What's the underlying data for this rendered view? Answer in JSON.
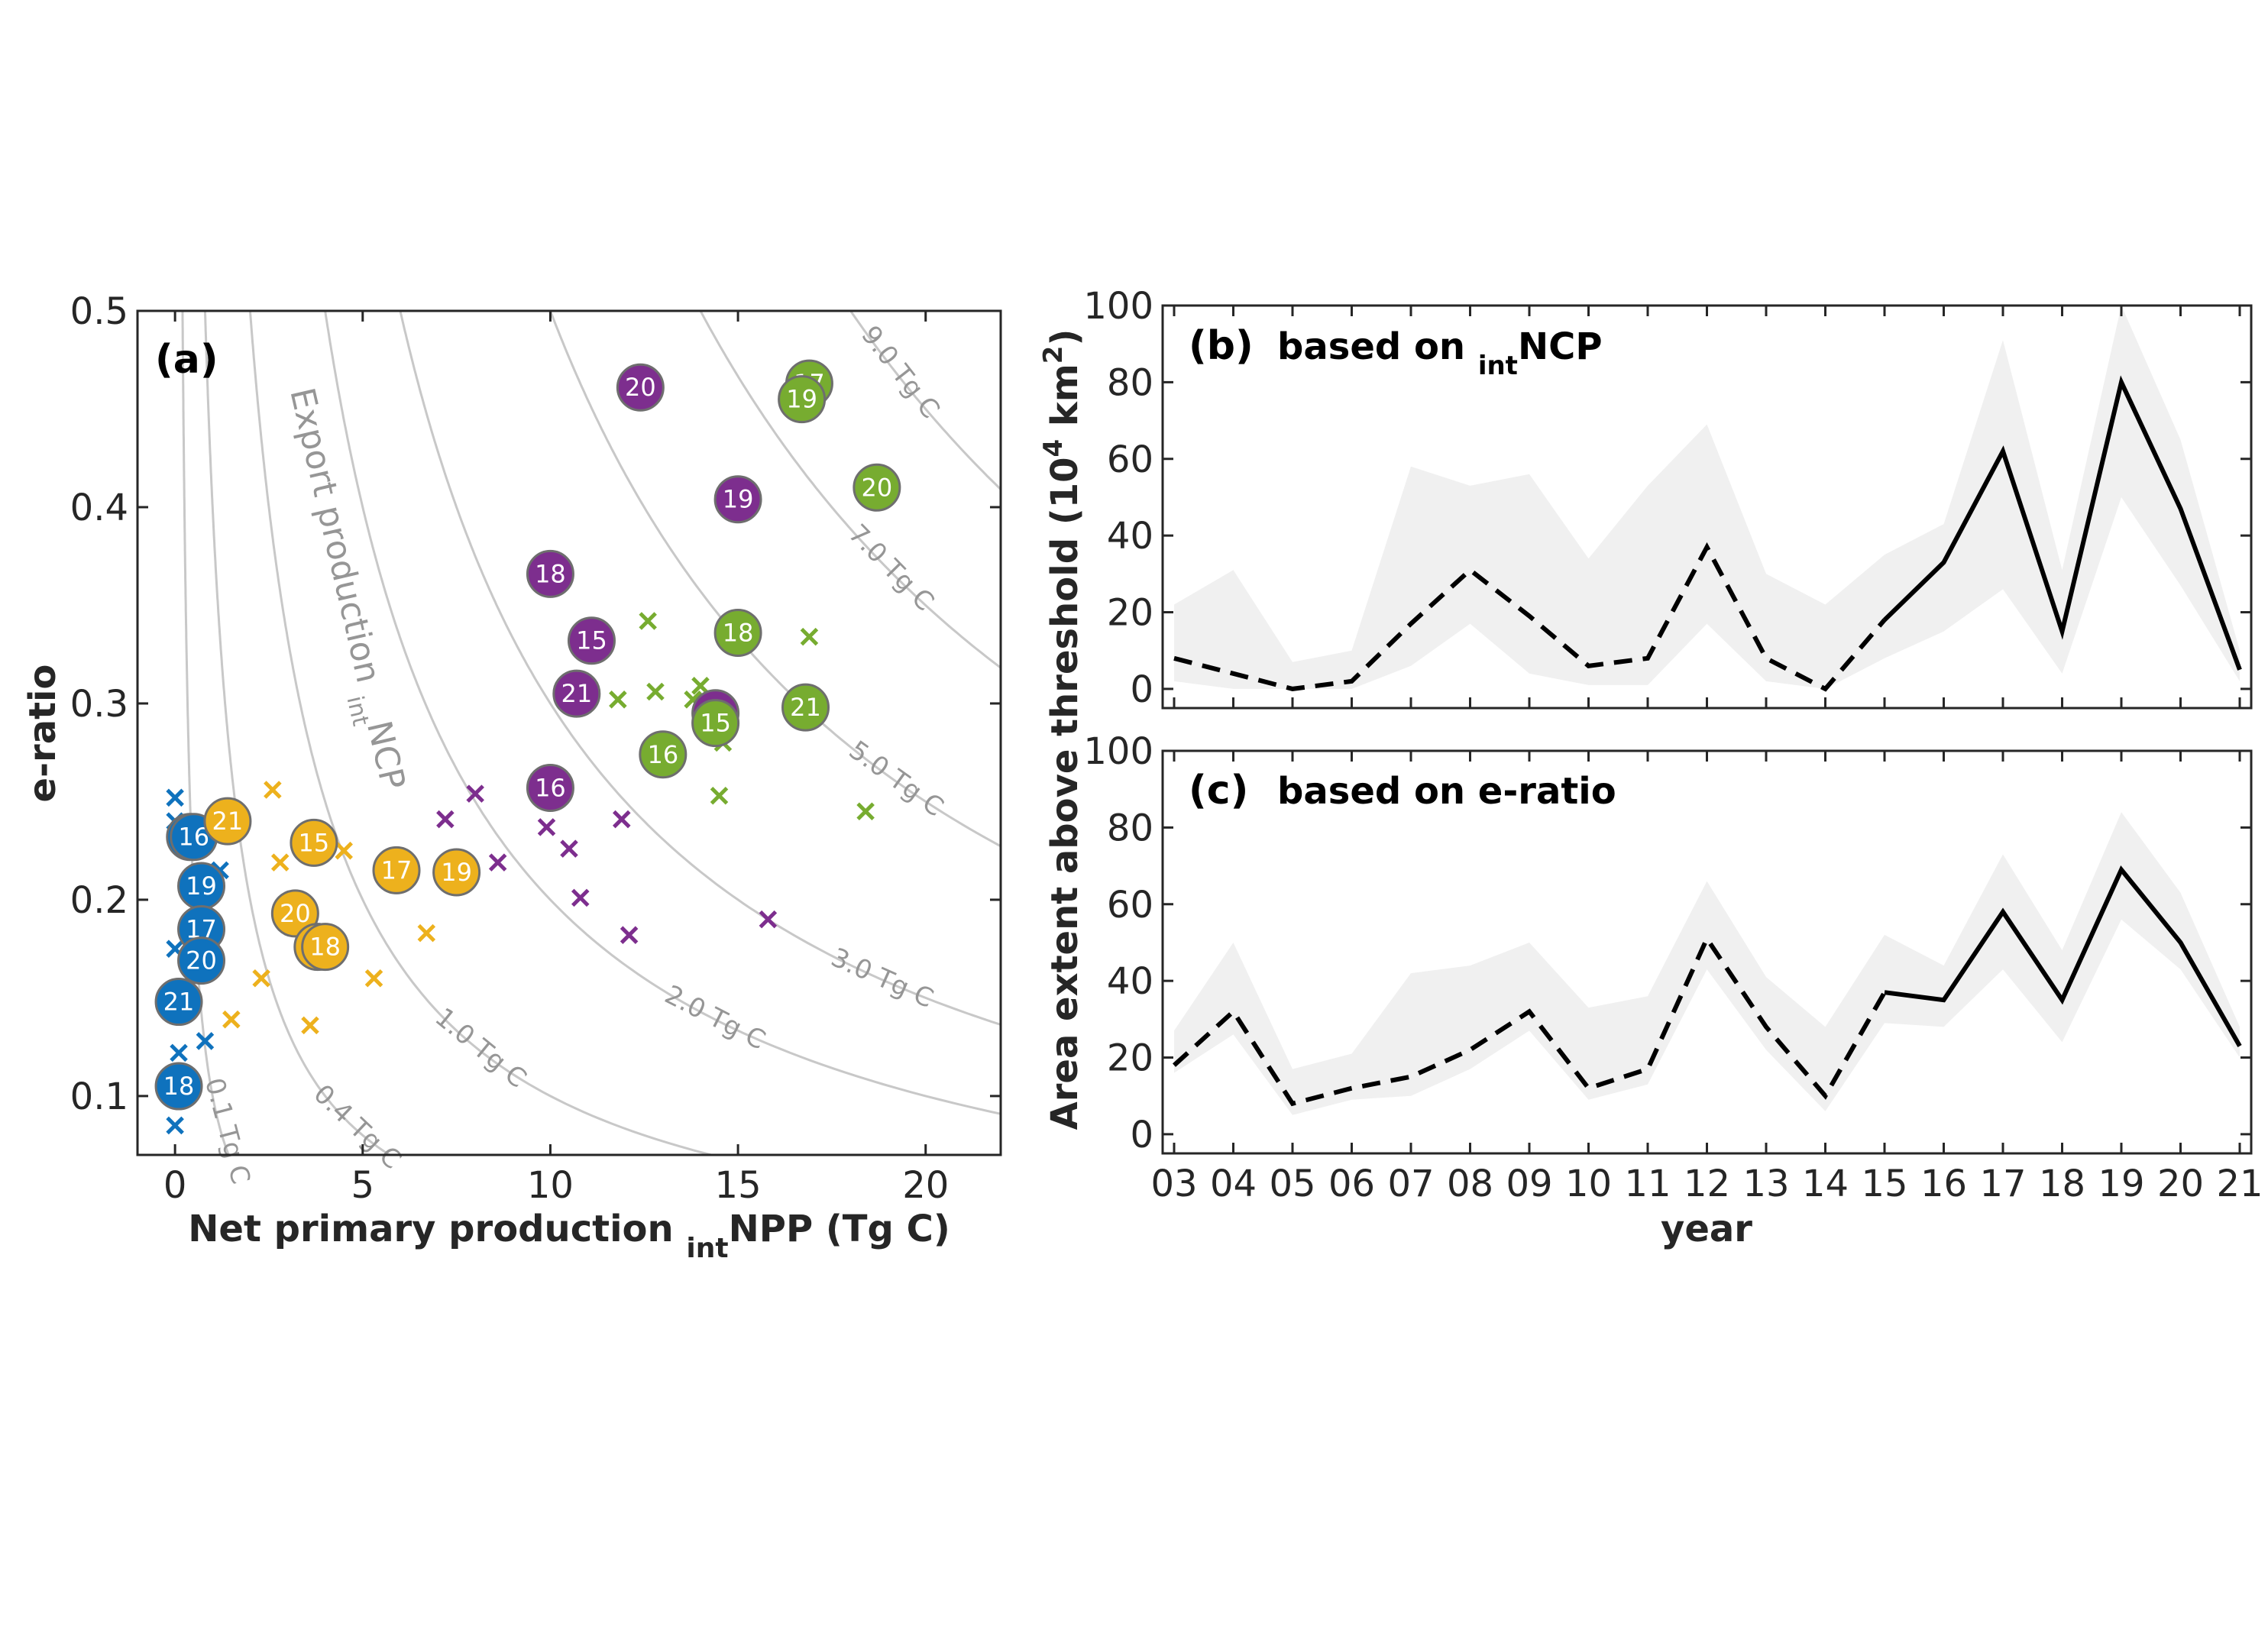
{
  "colors": {
    "blue": "#0f72bd",
    "yellow": "#edb11d",
    "purple": "#7d2e8e",
    "green": "#77ac30",
    "contour": "#c8c8c8",
    "contour_label": "#969696",
    "band": "#f0f0f0"
  },
  "chart_data": [
    {
      "type": "scatter",
      "panel": "(a)",
      "xlabel_pre": "Net primary production ",
      "xlabel_sub": "int",
      "xlabel_post": "NPP (Tg C)",
      "ylabel": "e-ratio",
      "xlim": [
        -1,
        22
      ],
      "ylim": [
        0.07,
        0.5
      ],
      "xticks": [
        0,
        5,
        10,
        15,
        20
      ],
      "yticks": [
        0.1,
        0.2,
        0.3,
        0.4,
        0.5
      ],
      "ytick_labels": [
        "0.1",
        "0.2",
        "0.3",
        "0.4",
        "0.5"
      ],
      "grid": false,
      "contour_title_pre": "Export production ",
      "contour_title_sub": "int",
      "contour_title_post": "NCP",
      "contours": [
        {
          "value": 0.1,
          "label": "0.1 Tg C"
        },
        {
          "value": 0.4,
          "label": "0.4 Tg C"
        },
        {
          "value": 1.0,
          "label": "1.0 Tg C"
        },
        {
          "value": 2.0,
          "label": "2.0 Tg C"
        },
        {
          "value": 3.0,
          "label": "3.0 Tg C"
        },
        {
          "value": 5.0,
          "label": "5.0 Tg C"
        },
        {
          "value": 7.0,
          "label": "7.0 Tg C"
        },
        {
          "value": 9.0,
          "label": "9.0 Tg C"
        }
      ],
      "series": [
        {
          "color": "blue",
          "crosses": [
            [
              0,
              0.252
            ],
            [
              0,
              0.24
            ],
            [
              0,
              0.175
            ],
            [
              0.2,
              0.142
            ],
            [
              0.1,
              0.122
            ],
            [
              0.8,
              0.128
            ],
            [
              0,
              0.085
            ],
            [
              1.2,
              0.215
            ],
            [
              0.6,
              0.226
            ]
          ],
          "years": [
            {
              "label": "15",
              "x": 0.4,
              "y": 0.232
            },
            {
              "label": "16",
              "x": 0.5,
              "y": 0.232
            },
            {
              "label": "19",
              "x": 0.7,
              "y": 0.207
            },
            {
              "label": "17",
              "x": 0.7,
              "y": 0.185
            },
            {
              "label": "20",
              "x": 0.7,
              "y": 0.169
            },
            {
              "label": "21",
              "x": 0.1,
              "y": 0.148
            },
            {
              "label": "18",
              "x": 0.1,
              "y": 0.105
            }
          ]
        },
        {
          "color": "yellow",
          "crosses": [
            [
              2.6,
              0.256
            ],
            [
              2.8,
              0.219
            ],
            [
              4.5,
              0.225
            ],
            [
              2.3,
              0.16
            ],
            [
              1.5,
              0.139
            ],
            [
              3.6,
              0.136
            ],
            [
              5.3,
              0.16
            ],
            [
              6.7,
              0.183
            ]
          ],
          "years": [
            {
              "label": "21",
              "x": 1.4,
              "y": 0.24
            },
            {
              "label": "15",
              "x": 3.7,
              "y": 0.229
            },
            {
              "label": "17",
              "x": 5.9,
              "y": 0.215
            },
            {
              "label": "19",
              "x": 7.5,
              "y": 0.214
            },
            {
              "label": "20",
              "x": 3.2,
              "y": 0.193
            },
            {
              "label": "16",
              "x": 3.8,
              "y": 0.176
            },
            {
              "label": "18",
              "x": 4.0,
              "y": 0.176
            }
          ]
        },
        {
          "color": "purple",
          "crosses": [
            [
              8.0,
              0.254
            ],
            [
              7.2,
              0.241
            ],
            [
              8.6,
              0.219
            ],
            [
              9.9,
              0.237
            ],
            [
              10.5,
              0.226
            ],
            [
              10.8,
              0.201
            ],
            [
              11.9,
              0.241
            ],
            [
              12.1,
              0.182
            ],
            [
              15.8,
              0.19
            ]
          ],
          "years": [
            {
              "label": "20",
              "x": 12.4,
              "y": 0.461
            },
            {
              "label": "19",
              "x": 15.0,
              "y": 0.404
            },
            {
              "label": "18",
              "x": 10.0,
              "y": 0.366
            },
            {
              "label": "15",
              "x": 11.1,
              "y": 0.332
            },
            {
              "label": "21",
              "x": 10.7,
              "y": 0.305
            },
            {
              "label": "17",
              "x": 14.4,
              "y": 0.295
            },
            {
              "label": "16",
              "x": 10.0,
              "y": 0.257
            }
          ]
        },
        {
          "color": "green",
          "crosses": [
            [
              12.6,
              0.342
            ],
            [
              11.8,
              0.302
            ],
            [
              12.8,
              0.306
            ],
            [
              13.8,
              0.302
            ],
            [
              14.0,
              0.309
            ],
            [
              14.6,
              0.28
            ],
            [
              16.6,
              0.301
            ],
            [
              16.9,
              0.334
            ],
            [
              14.5,
              0.253
            ],
            [
              18.4,
              0.245
            ]
          ],
          "years": [
            {
              "label": "17",
              "x": 16.9,
              "y": 0.463
            },
            {
              "label": "19",
              "x": 16.7,
              "y": 0.455
            },
            {
              "label": "20",
              "x": 18.7,
              "y": 0.41
            },
            {
              "label": "18",
              "x": 15.0,
              "y": 0.336
            },
            {
              "label": "21",
              "x": 16.8,
              "y": 0.298
            },
            {
              "label": "16",
              "x": 13.0,
              "y": 0.274
            },
            {
              "label": "15",
              "x": 14.4,
              "y": 0.29
            }
          ]
        }
      ]
    },
    {
      "type": "line",
      "panel": "(b)",
      "title_pre": "based on ",
      "title_sub": "int",
      "title_post": "NCP",
      "xlabel": "year",
      "ylabel_pre": "Area extent above threshold (10",
      "ylabel_sup1": "4",
      "ylabel_mid": " km",
      "ylabel_sup2": "2",
      "ylabel_post": ")",
      "ylim": [
        -5,
        100
      ],
      "yticks": [
        0,
        20,
        40,
        60,
        80,
        100
      ],
      "categories": [
        "03",
        "04",
        "05",
        "06",
        "07",
        "08",
        "09",
        "10",
        "11",
        "12",
        "13",
        "14",
        "15",
        "16",
        "17",
        "18",
        "19",
        "20",
        "21"
      ],
      "values": [
        8,
        4,
        0,
        2,
        17,
        31,
        19,
        6,
        8,
        37,
        8,
        0,
        18,
        33,
        62,
        15,
        80,
        47,
        5
      ],
      "solid_from": "15",
      "band_lower": [
        2,
        0,
        0,
        0,
        6,
        17,
        4,
        1,
        1,
        17,
        2,
        0,
        8,
        15,
        26,
        4,
        50,
        27,
        2
      ],
      "band_upper": [
        22,
        31,
        7,
        10,
        58,
        53,
        56,
        34,
        53,
        69,
        30,
        22,
        35,
        43,
        91,
        31,
        101,
        65,
        10
      ]
    },
    {
      "type": "line",
      "panel": "(c)",
      "title": "based on e-ratio",
      "ylim": [
        -5,
        100
      ],
      "yticks": [
        0,
        20,
        40,
        60,
        80,
        100
      ],
      "xlabel": "year",
      "categories": [
        "03",
        "04",
        "05",
        "06",
        "07",
        "08",
        "09",
        "10",
        "11",
        "12",
        "13",
        "14",
        "15",
        "16",
        "17",
        "18",
        "19",
        "20",
        "21"
      ],
      "values": [
        18,
        32,
        8,
        12,
        15,
        22,
        32,
        12,
        17,
        51,
        28,
        10,
        37,
        35,
        58,
        35,
        69,
        50,
        23
      ],
      "solid_from": "15",
      "band_lower": [
        16,
        26,
        5,
        9,
        10,
        17,
        27,
        9,
        13,
        43,
        22,
        6,
        29,
        28,
        43,
        24,
        56,
        43,
        20
      ],
      "band_upper": [
        27,
        50,
        17,
        21,
        42,
        44,
        50,
        33,
        36,
        66,
        41,
        28,
        52,
        44,
        73,
        48,
        84,
        63,
        28
      ]
    }
  ]
}
